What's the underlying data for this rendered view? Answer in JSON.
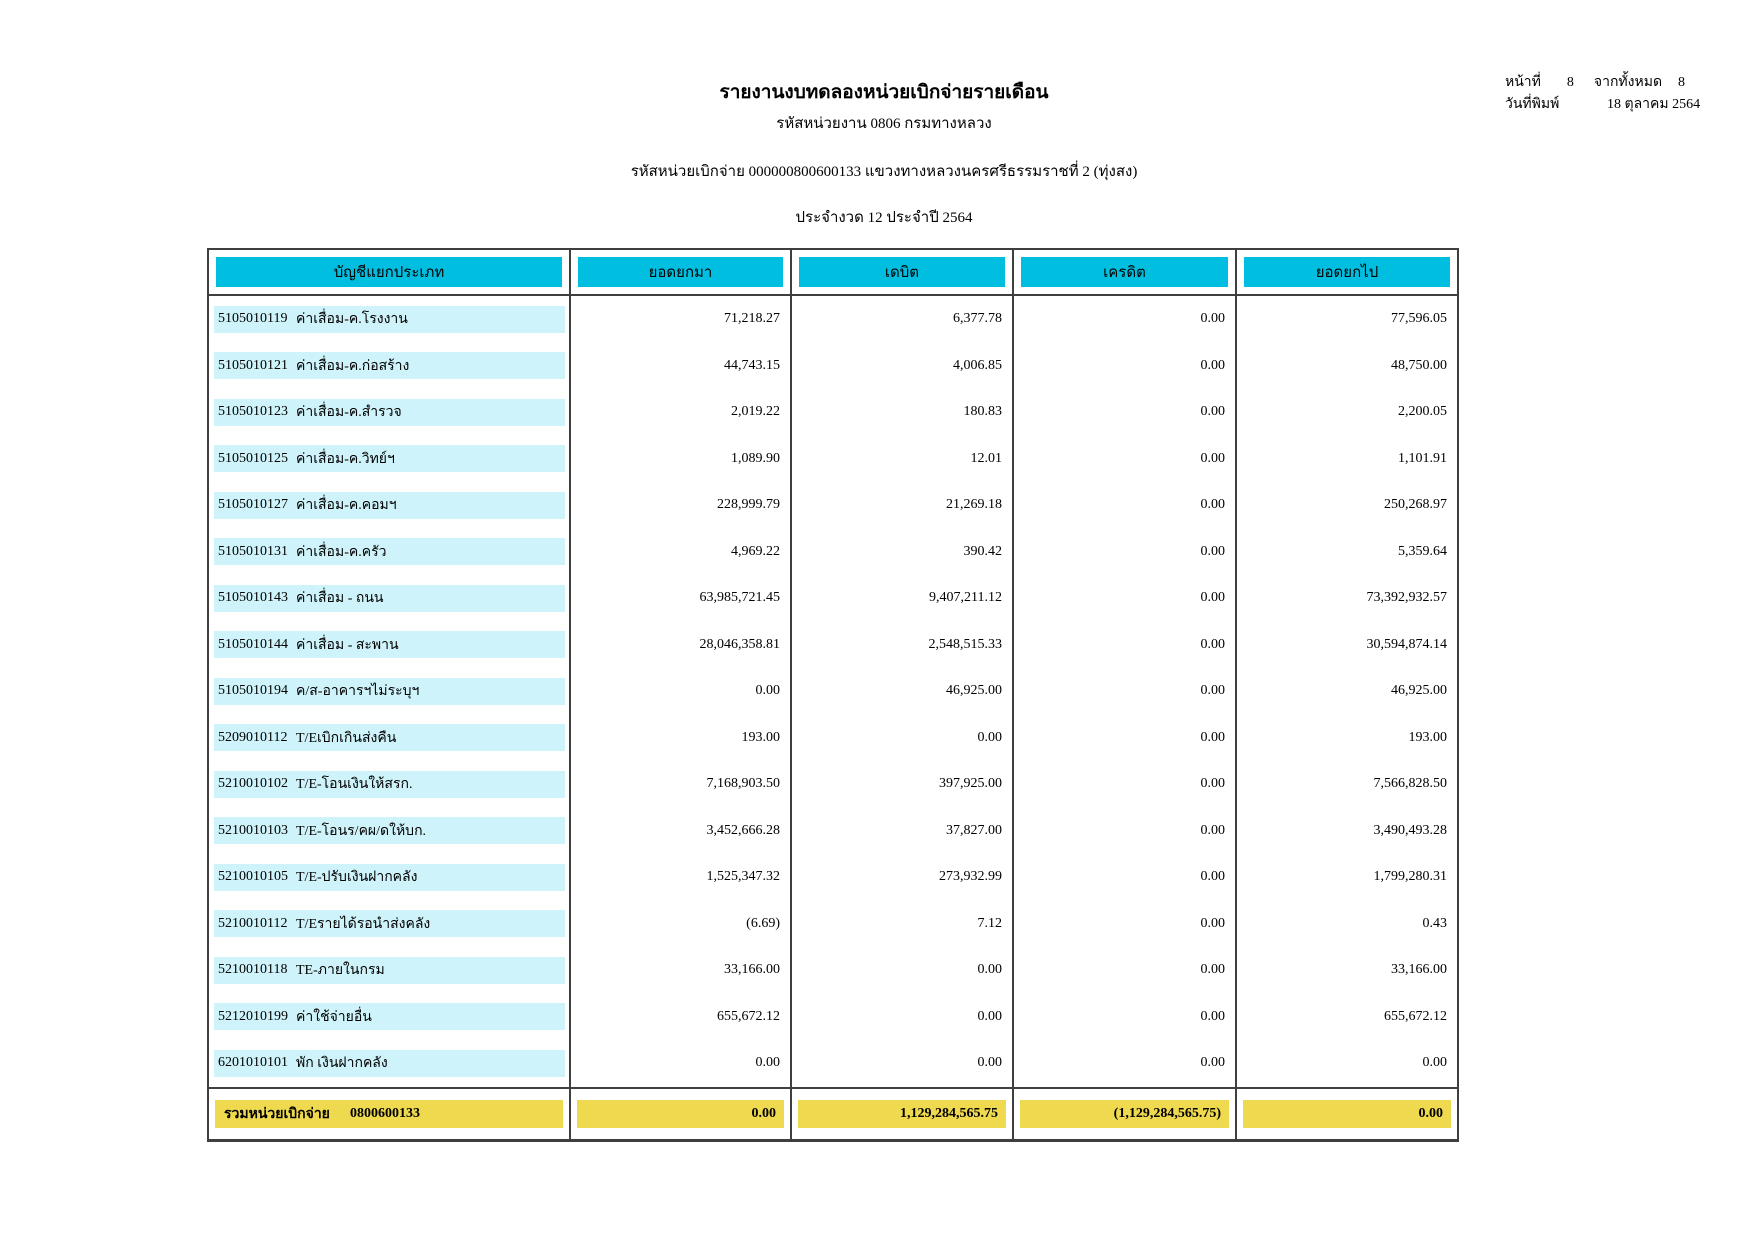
{
  "report": {
    "title": "รายงานงบทดลองหน่วยเบิกจ่ายรายเดือน",
    "org_line": "รหัสหน่วยงาน 0806 กรมทางหลวง",
    "unit_line": "รหัสหน่วยเบิกจ่าย 000000800600133 แขวงทางหลวงนครศรีธรรมราชที่ 2 (ทุ่งสง)",
    "period_line": "ประจำงวด 12 ประจำปี 2564"
  },
  "page_info": {
    "page_label": "หน้าที่",
    "page_number": "8",
    "total_label": "จากทั้งหมด",
    "total_pages": "8",
    "print_date_label": "วันที่พิมพ์",
    "print_date": "18 ตุลาคม 2564"
  },
  "table": {
    "columns": [
      "บัญชีแยกประเภท",
      "ยอดยกมา",
      "เดบิต",
      "เครดิต",
      "ยอดยกไป"
    ],
    "rows": [
      {
        "code": "5105010119",
        "name": "ค่าเสื่อม-ค.โรงงาน",
        "balance_forward": "71,218.27",
        "debit": "6,377.78",
        "credit": "0.00",
        "balance_carried": "77,596.05"
      },
      {
        "code": "5105010121",
        "name": "ค่าเสื่อม-ค.ก่อสร้าง",
        "balance_forward": "44,743.15",
        "debit": "4,006.85",
        "credit": "0.00",
        "balance_carried": "48,750.00"
      },
      {
        "code": "5105010123",
        "name": "ค่าเสื่อม-ค.สำรวจ",
        "balance_forward": "2,019.22",
        "debit": "180.83",
        "credit": "0.00",
        "balance_carried": "2,200.05"
      },
      {
        "code": "5105010125",
        "name": "ค่าเสื่อม-ค.วิทย์ฯ",
        "balance_forward": "1,089.90",
        "debit": "12.01",
        "credit": "0.00",
        "balance_carried": "1,101.91"
      },
      {
        "code": "5105010127",
        "name": "ค่าเสื่อม-ค.คอมฯ",
        "balance_forward": "228,999.79",
        "debit": "21,269.18",
        "credit": "0.00",
        "balance_carried": "250,268.97"
      },
      {
        "code": "5105010131",
        "name": "ค่าเสื่อม-ค.ครัว",
        "balance_forward": "4,969.22",
        "debit": "390.42",
        "credit": "0.00",
        "balance_carried": "5,359.64"
      },
      {
        "code": "5105010143",
        "name": "ค่าเสื่อม - ถนน",
        "balance_forward": "63,985,721.45",
        "debit": "9,407,211.12",
        "credit": "0.00",
        "balance_carried": "73,392,932.57"
      },
      {
        "code": "5105010144",
        "name": "ค่าเสื่อม - สะพาน",
        "balance_forward": "28,046,358.81",
        "debit": "2,548,515.33",
        "credit": "0.00",
        "balance_carried": "30,594,874.14"
      },
      {
        "code": "5105010194",
        "name": "ค/ส-อาคารฯไม่ระบุฯ",
        "balance_forward": "0.00",
        "debit": "46,925.00",
        "credit": "0.00",
        "balance_carried": "46,925.00"
      },
      {
        "code": "5209010112",
        "name": "T/Eเบิกเกินส่งคืน",
        "balance_forward": "193.00",
        "debit": "0.00",
        "credit": "0.00",
        "balance_carried": "193.00"
      },
      {
        "code": "5210010102",
        "name": "T/E-โอนเงินให้สรก.",
        "balance_forward": "7,168,903.50",
        "debit": "397,925.00",
        "credit": "0.00",
        "balance_carried": "7,566,828.50"
      },
      {
        "code": "5210010103",
        "name": "T/E-โอนร/คผ/ดให้บก.",
        "balance_forward": "3,452,666.28",
        "debit": "37,827.00",
        "credit": "0.00",
        "balance_carried": "3,490,493.28"
      },
      {
        "code": "5210010105",
        "name": "T/E-ปรับเงินฝากคลัง",
        "balance_forward": "1,525,347.32",
        "debit": "273,932.99",
        "credit": "0.00",
        "balance_carried": "1,799,280.31"
      },
      {
        "code": "5210010112",
        "name": "T/Eรายได้รอนำส่งคลัง",
        "balance_forward": "(6.69)",
        "debit": "7.12",
        "credit": "0.00",
        "balance_carried": "0.43"
      },
      {
        "code": "5210010118",
        "name": "TE-ภายในกรม",
        "balance_forward": "33,166.00",
        "debit": "0.00",
        "credit": "0.00",
        "balance_carried": "33,166.00"
      },
      {
        "code": "5212010199",
        "name": "ค่าใช้จ่ายอื่น",
        "balance_forward": "655,672.12",
        "debit": "0.00",
        "credit": "0.00",
        "balance_carried": "655,672.12"
      },
      {
        "code": "6201010101",
        "name": "พัก เงินฝากคลัง",
        "balance_forward": "0.00",
        "debit": "0.00",
        "credit": "0.00",
        "balance_carried": "0.00"
      }
    ],
    "total": {
      "label": "รวมหน่วยเบิกจ่าย",
      "code": "0800600133",
      "balance_forward": "0.00",
      "debit": "1,129,284,565.75",
      "credit": "(1,129,284,565.75)",
      "balance_carried": "0.00"
    }
  },
  "colors": {
    "header_cyan": "#00BEE0",
    "row_light_cyan": "#CEF3FA",
    "total_yellow": "#EFD94F",
    "border": "#3f3f3f"
  }
}
